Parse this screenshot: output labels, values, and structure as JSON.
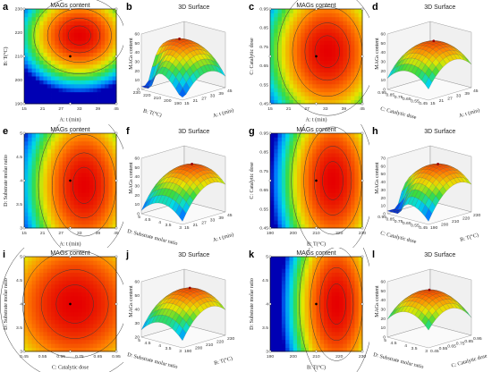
{
  "figure": {
    "panels_per_row": 4
  },
  "chart_data": [
    {
      "letter": "a",
      "type": "contour",
      "title": "MAGs content",
      "xlabel": "A: t (min)",
      "ylabel": "B: T(°C)",
      "xlim": [
        15,
        45
      ],
      "ylim": [
        190,
        230
      ],
      "xticks": [
        "15",
        "21",
        "27",
        "33",
        "39",
        "45"
      ],
      "yticks": [
        "190",
        "200",
        "210",
        "220",
        "230"
      ],
      "hot": [
        0.6,
        0.72
      ],
      "spread": [
        0.55,
        0.45
      ],
      "has_center": true
    },
    {
      "letter": "b",
      "type": "surface3d",
      "title": "3D Surface",
      "zlabel": "MAGs content",
      "xlabel": "A: t (min)",
      "ylabel": "B: T(°C)",
      "zticks": [
        "0",
        "10",
        "20",
        "30",
        "40",
        "50",
        "60"
      ],
      "xticks": [
        "15",
        "21",
        "27",
        "33",
        "39",
        "45"
      ],
      "yticks": [
        "190",
        "200",
        "210",
        "220",
        "230"
      ],
      "peak": [
        0.6,
        0.7
      ],
      "dip": true
    },
    {
      "letter": "c",
      "type": "contour",
      "title": "MAGs content",
      "xlabel": "A: t (min)",
      "ylabel": "C: Catalytic dose",
      "xlim": [
        15,
        45
      ],
      "ylim": [
        0.45,
        0.95
      ],
      "xticks": [
        "15",
        "21",
        "27",
        "33",
        "39",
        "45"
      ],
      "yticks": [
        "0.45",
        "0.55",
        "0.65",
        "0.75",
        "0.85",
        "0.95"
      ],
      "hot": [
        0.62,
        0.55
      ],
      "spread": [
        0.6,
        0.75
      ],
      "has_center": true
    },
    {
      "letter": "d",
      "type": "surface3d",
      "title": "3D Surface",
      "zlabel": "MAGs content",
      "xlabel": "A: t (min)",
      "ylabel": "C: Catalytic dose",
      "zticks": [
        "0",
        "10",
        "20",
        "30",
        "40",
        "50",
        "60"
      ],
      "xticks": [
        "15",
        "21",
        "27",
        "33",
        "39",
        "45"
      ],
      "yticks": [
        "0.45",
        "0.55",
        "0.65",
        "0.75",
        "0.85",
        "0.95"
      ],
      "peak": [
        0.6,
        0.5
      ],
      "dip": false
    },
    {
      "letter": "e",
      "type": "contour",
      "title": "MAGs content",
      "xlabel": "A: t (min)",
      "ylabel": "D: Substrate molar ratio",
      "xlim": [
        15,
        45
      ],
      "ylim": [
        3,
        5
      ],
      "xticks": [
        "15",
        "21",
        "27",
        "33",
        "39",
        "45"
      ],
      "yticks": [
        "3",
        "3.5",
        "4",
        "4.5",
        "5"
      ],
      "hot": [
        0.65,
        0.45
      ],
      "spread": [
        0.55,
        0.85
      ],
      "has_center": true
    },
    {
      "letter": "f",
      "type": "surface3d",
      "title": "3D Surface",
      "zlabel": "MAGs content",
      "xlabel": "A: t (min)",
      "ylabel": "D: Substrate molar ratio",
      "zticks": [
        "0",
        "10",
        "20",
        "30",
        "40",
        "50",
        "60"
      ],
      "xticks": [
        "15",
        "21",
        "27",
        "33",
        "39",
        "45"
      ],
      "yticks": [
        "3",
        "3.5",
        "4",
        "4.5",
        "5"
      ],
      "peak": [
        0.7,
        0.5
      ],
      "dip": false
    },
    {
      "letter": "g",
      "type": "contour",
      "title": "MAGs content",
      "xlabel": "B: T(°C)",
      "ylabel": "C: Catalytic dose",
      "xlim": [
        190,
        230
      ],
      "ylim": [
        0.45,
        0.95
      ],
      "xticks": [
        "190",
        "200",
        "210",
        "220",
        "230"
      ],
      "yticks": [
        "0.45",
        "0.55",
        "0.65",
        "0.75",
        "0.85",
        "0.95"
      ],
      "hot": [
        0.68,
        0.5
      ],
      "spread": [
        0.5,
        0.9
      ],
      "has_center": true
    },
    {
      "letter": "h",
      "type": "surface3d",
      "title": "3D Surface",
      "zlabel": "MAGs content",
      "xlabel": "B: T(°C)",
      "ylabel": "C: Catalytic dose",
      "zticks": [
        "0",
        "10",
        "20",
        "30",
        "40",
        "50",
        "60",
        "70"
      ],
      "xticks": [
        "190",
        "200",
        "210",
        "220",
        "230"
      ],
      "yticks": [
        "0.45",
        "0.55",
        "0.65",
        "0.75",
        "0.85",
        "0.95"
      ],
      "peak": [
        0.7,
        0.5
      ],
      "dip": true
    },
    {
      "letter": "i",
      "type": "contour",
      "title": "MAGs content",
      "xlabel": "C: Catalytic dose",
      "ylabel": "D: Substrate molar ratio",
      "xlim": [
        0.45,
        0.95
      ],
      "ylim": [
        3,
        5
      ],
      "xticks": [
        "0.45",
        "0.55",
        "0.65",
        "0.75",
        "0.85",
        "0.95"
      ],
      "yticks": [
        "3",
        "3.5",
        "4",
        "4.5",
        "5"
      ],
      "hot": [
        0.55,
        0.5
      ],
      "spread": [
        0.9,
        0.9
      ],
      "has_center": true
    },
    {
      "letter": "j",
      "type": "surface3d",
      "title": "3D Surface",
      "zlabel": "MAGs content",
      "xlabel": "B: T(°C)",
      "ylabel": "D: Substrate molar ratio",
      "zticks": [
        "20",
        "30",
        "40",
        "50",
        "60"
      ],
      "xticks": [
        "190",
        "200",
        "210",
        "220",
        "230"
      ],
      "yticks": [
        "3",
        "3.5",
        "4",
        "4.5",
        "5"
      ],
      "peak": [
        0.65,
        0.5
      ],
      "dip": false
    },
    {
      "letter": "k",
      "type": "contour",
      "title": "MAGs content",
      "xlabel": "B: T(°C)",
      "ylabel": "D: Substrate molar ratio",
      "xlim": [
        190,
        230
      ],
      "ylim": [
        3,
        5
      ],
      "xticks": [
        "190",
        "200",
        "210",
        "220",
        "230"
      ],
      "yticks": [
        "3",
        "3.5",
        "4",
        "4.5",
        "5"
      ],
      "hot": [
        0.72,
        0.5
      ],
      "spread": [
        0.45,
        0.95
      ],
      "has_center": true
    },
    {
      "letter": "l",
      "type": "surface3d",
      "title": "3D Surface",
      "zlabel": "MAGs content",
      "xlabel": "C: Catalytic dose",
      "ylabel": "D: Substrate molar ratio",
      "zticks": [
        "0",
        "10",
        "20",
        "30",
        "40",
        "50",
        "60"
      ],
      "xticks": [
        "0.45",
        "0.55",
        "0.65",
        "0.75",
        "0.85",
        "0.95"
      ],
      "yticks": [
        "3",
        "3.5",
        "4",
        "4.5",
        "5"
      ],
      "peak": [
        0.5,
        0.5
      ],
      "dip": false
    }
  ]
}
